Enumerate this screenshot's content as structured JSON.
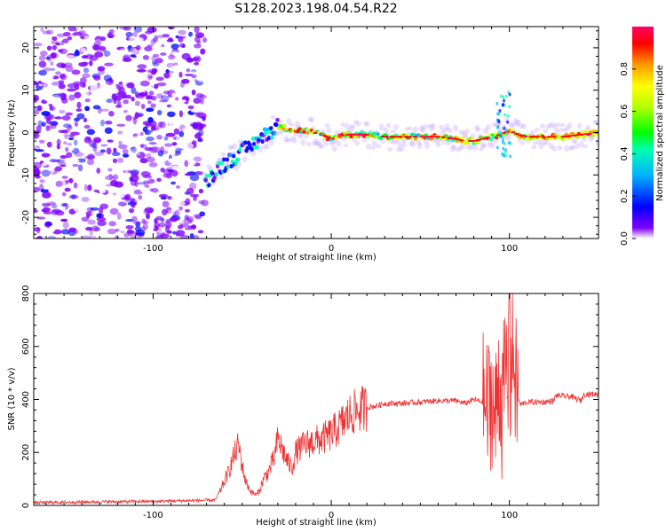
{
  "figure_title": "S128.2023.198.04.54.R22",
  "chart_data": [
    {
      "type": "heatmap",
      "title": "",
      "xlabel": "Height of straight line (km)",
      "ylabel": "Frequency (Hz)",
      "xlim": [
        -167,
        150
      ],
      "ylim": [
        -25,
        25
      ],
      "xticks": [
        -100,
        0,
        100
      ],
      "yticks": [
        -20,
        -10,
        0,
        10,
        20
      ],
      "colorbar": {
        "label": "Normalized spectral amplitude",
        "range": [
          0,
          1
        ],
        "ticks": [
          "0.0",
          "0.2",
          "0.4",
          "0.6",
          "0.8"
        ],
        "colormap": [
          "#ffffff",
          "#7f00ff",
          "#0000ff",
          "#00b4ff",
          "#00ffb0",
          "#00ff00",
          "#b4ff00",
          "#ffff00",
          "#ff9900",
          "#ff0000",
          "#ff0066"
        ]
      },
      "noise_region_x": [
        -167,
        -71
      ],
      "ridge": {
        "x": [
          -71,
          -65,
          -60,
          -55,
          -50,
          -45,
          -40,
          -35,
          -30,
          -25,
          -20,
          -15,
          -10,
          -5,
          0,
          5,
          10,
          20,
          30,
          40,
          50,
          60,
          70,
          75,
          80,
          85,
          90,
          95,
          100,
          105,
          110,
          120,
          130,
          140,
          150
        ],
        "y": [
          -12,
          -9,
          -7.5,
          -6,
          -4.5,
          -3,
          -1.5,
          0,
          1.5,
          1,
          0.5,
          0.5,
          0,
          -0.5,
          -1.5,
          -0.5,
          -0.5,
          -0.5,
          -1,
          -1,
          -1,
          -1,
          -1.5,
          -2,
          -2,
          -1.5,
          -1,
          -0.5,
          0.5,
          -0.5,
          -1,
          -1,
          -1,
          -0.5,
          0
        ]
      }
    },
    {
      "type": "line",
      "title": "",
      "xlabel": "Height of straight line (km)",
      "ylabel": "SNR (10 * v/v)",
      "xlim": [
        -167,
        150
      ],
      "ylim": [
        0,
        800
      ],
      "xticks": [
        -100,
        0,
        100
      ],
      "yticks": [
        0,
        200,
        400,
        600,
        800
      ],
      "color": "#ee3333",
      "series": [
        {
          "x": [
            -167,
            -150,
            -120,
            -100,
            -80,
            -65,
            -62,
            -58,
            -55,
            -52,
            -50,
            -48,
            -45,
            -42,
            -40,
            -38,
            -35,
            -32,
            -30,
            -28,
            -25,
            -22,
            -20,
            -15,
            -10,
            -5,
            0,
            5,
            10,
            15,
            20,
            25,
            30,
            40,
            50,
            60,
            70,
            75,
            80,
            85,
            88,
            90,
            92,
            94,
            96,
            98,
            100,
            102,
            104,
            106,
            110,
            120,
            125,
            126,
            135,
            140,
            142,
            150
          ],
          "y": [
            10,
            12,
            14,
            15,
            18,
            20,
            60,
            120,
            180,
            230,
            150,
            90,
            50,
            40,
            60,
            100,
            130,
            180,
            250,
            220,
            170,
            140,
            200,
            230,
            240,
            250,
            270,
            300,
            340,
            360,
            370,
            375,
            385,
            385,
            390,
            395,
            395,
            385,
            400,
            390,
            360,
            420,
            300,
            500,
            350,
            550,
            420,
            600,
            420,
            380,
            390,
            390,
            395,
            415,
            410,
            395,
            420,
            420
          ]
        }
      ]
    }
  ]
}
